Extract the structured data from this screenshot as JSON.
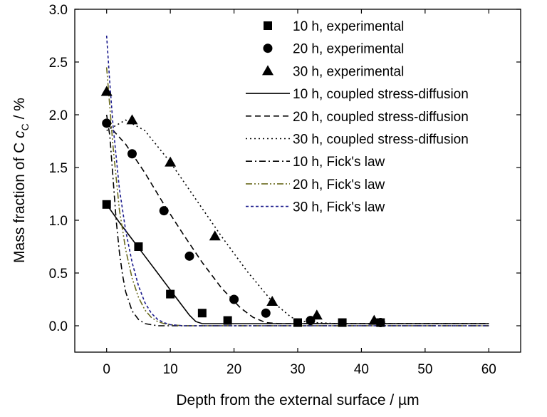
{
  "chart_data": {
    "type": "scatter",
    "title": "",
    "xlabel": "Depth from the external surface / µm",
    "ylabel": {
      "main": "Mass fraction of C ",
      "var": "c",
      "sub": "C",
      "unit": " / %"
    },
    "xlim": [
      -5,
      65
    ],
    "ylim": [
      -0.25,
      3.0
    ],
    "xticks": [
      0,
      10,
      20,
      30,
      40,
      50,
      60
    ],
    "yticks": [
      0.0,
      0.5,
      1.0,
      1.5,
      2.0,
      2.5,
      3.0
    ],
    "xtick_labels": [
      "0",
      "10",
      "20",
      "30",
      "40",
      "50",
      "60"
    ],
    "ytick_labels": [
      "0.0",
      "0.5",
      "1.0",
      "1.5",
      "2.0",
      "2.5",
      "3.0"
    ],
    "grid": false,
    "legend_position": "top-right",
    "series": [
      {
        "name": "10 h, experimental",
        "kind": "marker",
        "marker": "square",
        "color": "#000000",
        "x": [
          0,
          5,
          10,
          15,
          19,
          30,
          37,
          43
        ],
        "y": [
          1.15,
          0.75,
          0.3,
          0.12,
          0.05,
          0.03,
          0.03,
          0.03
        ]
      },
      {
        "name": "20 h, experimental",
        "kind": "marker",
        "marker": "circle",
        "color": "#000000",
        "x": [
          0,
          4,
          9,
          13,
          20,
          25,
          32,
          43
        ],
        "y": [
          1.92,
          1.63,
          1.09,
          0.66,
          0.25,
          0.12,
          0.05,
          0.03
        ]
      },
      {
        "name": "30 h, experimental",
        "kind": "marker",
        "marker": "triangle",
        "color": "#000000",
        "x": [
          0,
          4,
          10,
          17,
          26,
          33,
          42
        ],
        "y": [
          2.22,
          1.95,
          1.55,
          0.85,
          0.23,
          0.1,
          0.05
        ]
      },
      {
        "name": "10 h, coupled stress-diffusion",
        "kind": "line",
        "dash": "solid",
        "color": "#000000",
        "x": [
          0,
          2,
          4,
          6,
          8,
          10,
          12,
          13,
          14,
          15,
          16,
          20,
          30,
          40,
          50,
          60
        ],
        "y": [
          1.15,
          0.98,
          0.82,
          0.66,
          0.5,
          0.34,
          0.18,
          0.1,
          0.04,
          0.02,
          0.02,
          0.02,
          0.02,
          0.02,
          0.02,
          0.02
        ]
      },
      {
        "name": "20 h, coupled stress-diffusion",
        "kind": "line",
        "dash": "dash",
        "color": "#000000",
        "x": [
          0,
          3,
          6,
          9,
          12,
          15,
          18,
          21,
          23,
          25,
          27,
          30,
          40,
          50,
          60
        ],
        "y": [
          1.92,
          1.72,
          1.45,
          1.15,
          0.87,
          0.6,
          0.36,
          0.17,
          0.08,
          0.03,
          0.02,
          0.02,
          0.02,
          0.02,
          0.02
        ]
      },
      {
        "name": "30 h, coupled stress-diffusion",
        "kind": "line",
        "dash": "dot",
        "color": "#000000",
        "x": [
          0,
          3,
          6,
          10,
          14,
          18,
          22,
          26,
          29,
          31,
          33,
          36,
          40,
          50,
          60
        ],
        "y": [
          1.85,
          1.95,
          1.85,
          1.55,
          1.2,
          0.85,
          0.52,
          0.23,
          0.08,
          0.04,
          0.03,
          0.02,
          0.02,
          0.02,
          0.02
        ]
      },
      {
        "name": "10 h, Fick's law",
        "kind": "line",
        "dash": "dashdot",
        "color": "#000000",
        "x": [
          0,
          0.5,
          1,
          1.5,
          2,
          2.5,
          3,
          4,
          5,
          6,
          7,
          8,
          10,
          15,
          30,
          60
        ],
        "y": [
          2.0,
          1.8,
          1.4,
          1.0,
          0.7,
          0.48,
          0.32,
          0.14,
          0.06,
          0.02,
          0.01,
          0.0,
          0.0,
          0.0,
          0.0,
          0.0
        ]
      },
      {
        "name": "20 h, Fick's law",
        "kind": "line",
        "dash": "dashdotdot",
        "color": "#6b6b1f",
        "x": [
          0,
          1,
          2,
          3,
          4,
          5,
          6,
          7,
          8,
          9,
          10,
          12,
          15,
          30,
          60
        ],
        "y": [
          2.45,
          1.7,
          1.1,
          0.72,
          0.45,
          0.27,
          0.15,
          0.08,
          0.04,
          0.02,
          0.01,
          0.0,
          0.0,
          0.0,
          0.0
        ]
      },
      {
        "name": "30 h, Fick's law",
        "kind": "line",
        "dash": "shortdash",
        "color": "#1a1a8c",
        "x": [
          0,
          0.5,
          1,
          2,
          3,
          4,
          5,
          6,
          7,
          8,
          9,
          10,
          12,
          15,
          30,
          60
        ],
        "y": [
          2.75,
          2.3,
          1.9,
          1.3,
          0.9,
          0.6,
          0.38,
          0.22,
          0.12,
          0.06,
          0.03,
          0.01,
          0.0,
          0.0,
          0.0,
          0.0
        ]
      }
    ]
  }
}
